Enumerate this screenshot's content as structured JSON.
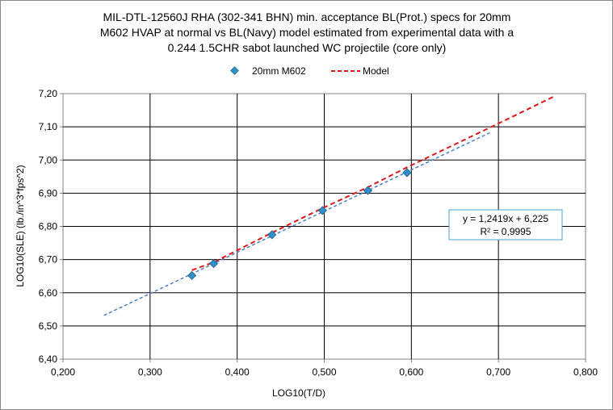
{
  "chart_data": {
    "type": "scatter",
    "title_lines": [
      "MIL-DTL-12560J RHA (302-341 BHN) min. acceptance BL(Prot.) specs for 20mm",
      "M602 HVAP at normal vs BL(Navy) model estimated from experimental data with a",
      "0.244 1.5CHR sabot launched  WC projectile (core only)"
    ],
    "xlabel": "LOG10(T/D)",
    "ylabel": "LOG10(SLE) (lb./in^3*fps^2)",
    "xlim": [
      0.2,
      0.8
    ],
    "ylim": [
      6.4,
      7.2
    ],
    "x_ticks": [
      "0,200",
      "0,300",
      "0,400",
      "0,500",
      "0,600",
      "0,700",
      "0,800"
    ],
    "y_ticks": [
      "6,40",
      "6,50",
      "6,60",
      "6,70",
      "6,80",
      "6,90",
      "7,00",
      "7,10",
      "7,20"
    ],
    "grid": true,
    "legend_position": "top-center",
    "series": [
      {
        "name": "20mm M602",
        "kind": "markers",
        "color": "#2e8fc9",
        "x": [
          0.348,
          0.373,
          0.44,
          0.498,
          0.55,
          0.595
        ],
        "y": [
          6.652,
          6.688,
          6.775,
          6.848,
          6.908,
          6.962
        ]
      },
      {
        "name": "Model",
        "kind": "dashed-line",
        "color": "#e0191e",
        "x": [
          0.348,
          0.373,
          0.44,
          0.498,
          0.55,
          0.595,
          0.7,
          0.765
        ],
        "y": [
          6.668,
          6.692,
          6.781,
          6.855,
          6.918,
          6.978,
          7.11,
          7.193
        ]
      }
    ],
    "trendline": {
      "color": "#4a7ec2",
      "x_range": [
        0.247,
        0.69
      ],
      "slope": 1.2419,
      "intercept": 6.225,
      "label_lines": [
        "y = 1,2419x + 6,225",
        "R² = 0,9995"
      ]
    }
  },
  "legend": {
    "items": [
      "20mm M602",
      "Model"
    ]
  }
}
